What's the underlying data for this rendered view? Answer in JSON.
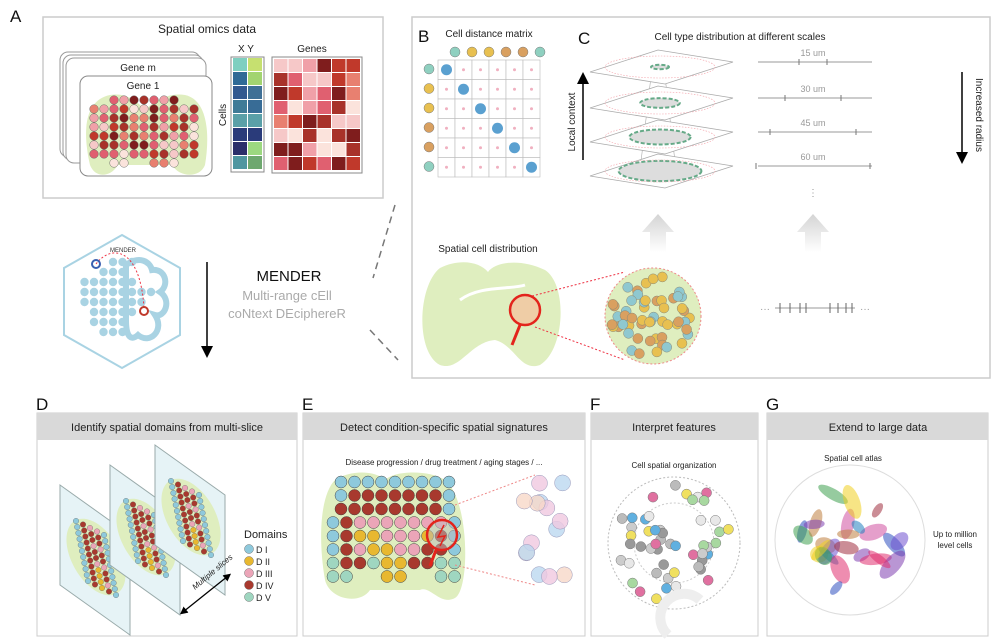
{
  "panel_a": {
    "label": "A",
    "title": "Spatial omics data",
    "gene_m": "Gene m",
    "gene_1": "Gene 1",
    "xy": "X Y",
    "genes": "Genes",
    "cells": "Cells",
    "hex_label": "MENDER",
    "method_name": "MENDER",
    "method_line1": "Multi-range cEll",
    "method_line2": "coNtext DEciphereR"
  },
  "panel_b": {
    "label": "B",
    "title": "Cell distance matrix"
  },
  "panel_c": {
    "label": "C",
    "title": "Cell type distribution at different scales",
    "local_context": "Local context",
    "increased_radius": "Increased radius",
    "scales": [
      "15 um",
      "30 um",
      "45 um",
      "60 um"
    ],
    "ellipsis": "⋮",
    "spatial_cell_distribution": "Spatial cell distribution",
    "ruler_dots_left": "···",
    "ruler_dots_right": "···"
  },
  "panel_d": {
    "label": "D",
    "header": "Identify spatial domains from multi-slice",
    "legend_title": "Domains",
    "domains": [
      {
        "name": "D I",
        "color": "#8ec9dc"
      },
      {
        "name": "D II",
        "color": "#e8b830"
      },
      {
        "name": "D III",
        "color": "#eba5b8"
      },
      {
        "name": "D IV",
        "color": "#a8392e"
      },
      {
        "name": "D V",
        "color": "#9fd6c0"
      }
    ],
    "slices_label": "Multiple slices"
  },
  "panel_e": {
    "label": "E",
    "header": "Detect condition-specific spatial signatures",
    "subtitle": "Disease progression / drug treatment / aging stages / ..."
  },
  "panel_f": {
    "label": "F",
    "header": "Interpret features",
    "subtitle": "Cell spatial organization"
  },
  "panel_g": {
    "label": "G",
    "header": "Extend to large data",
    "subtitle": "Spatial cell atlas",
    "note_line1": "Up to million",
    "note_line2": "level cells"
  },
  "colors": {
    "tissue": "#dfeebf",
    "accent_red": "#e3241c",
    "panel_header": "#d9d9d9",
    "hex_blue": "#a9d3e3"
  }
}
